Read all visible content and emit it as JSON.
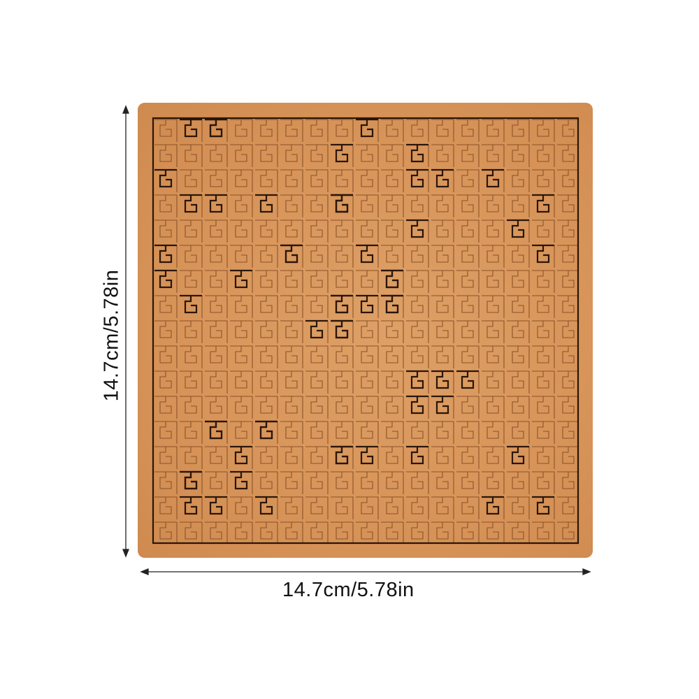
{
  "product": {
    "board_color": "#d8955a",
    "engraving_color": "#6b3c18",
    "width_label": "14.7cm/5.78in",
    "height_label": "14.7cm/5.78in"
  }
}
